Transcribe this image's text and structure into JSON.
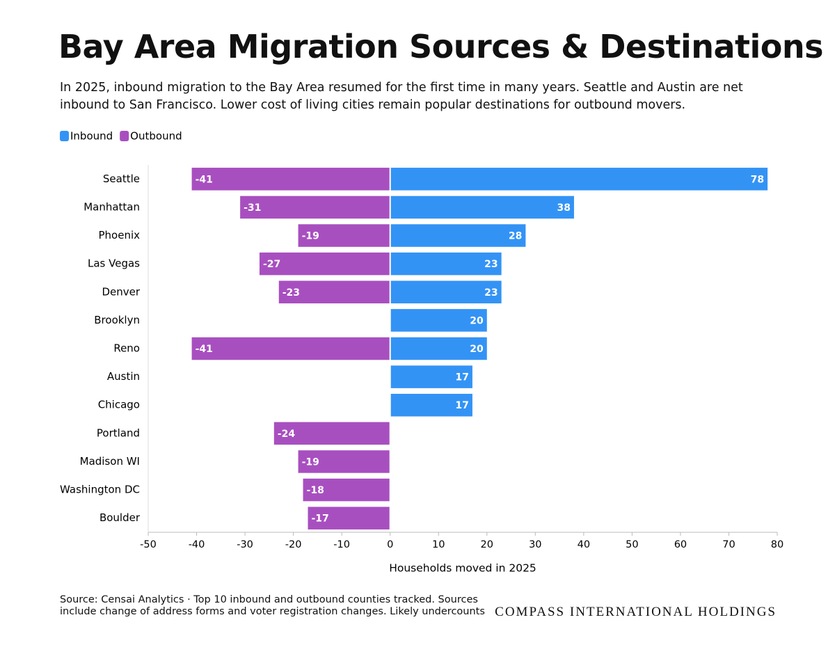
{
  "chart_data": {
    "type": "diverging-bar",
    "title": "Bay Area Migration Sources & Destinations",
    "subtitle": "In 2025, inbound migration to the Bay Area resumed for the first time in many years. Seattle and Austin are net inbound to San Francisco. Lower cost of living cities remain popular destinations for outbound movers.",
    "categories": [
      "Seattle",
      "Manhattan",
      "Phoenix",
      "Las Vegas",
      "Denver",
      "Brooklyn",
      "Reno",
      "Austin",
      "Chicago",
      "Portland",
      "Madison WI",
      "Washington DC",
      "Boulder"
    ],
    "series": [
      {
        "name": "Inbound",
        "color": "#3393f5",
        "values": [
          78,
          38,
          28,
          23,
          23,
          20,
          20,
          17,
          17,
          null,
          null,
          null,
          null
        ]
      },
      {
        "name": "Outbound",
        "color": "#a84fc0",
        "values": [
          -41,
          -31,
          -19,
          -27,
          -23,
          null,
          -41,
          null,
          null,
          -24,
          -19,
          -18,
          -17
        ]
      }
    ],
    "xlim": [
      -50,
      80
    ],
    "xticks": [
      -50,
      -40,
      -30,
      -20,
      -10,
      0,
      10,
      20,
      30,
      40,
      50,
      60,
      70,
      80
    ],
    "xlabel": "Households moved in 2025",
    "legend": "top-left",
    "source": "Source: Censai Analytics · Top 10 inbound and outbound counties tracked. Sources include change of address forms and voter registration changes. Likely undercounts",
    "brand": "COMPASS INTERNATIONAL HOLDINGS"
  }
}
